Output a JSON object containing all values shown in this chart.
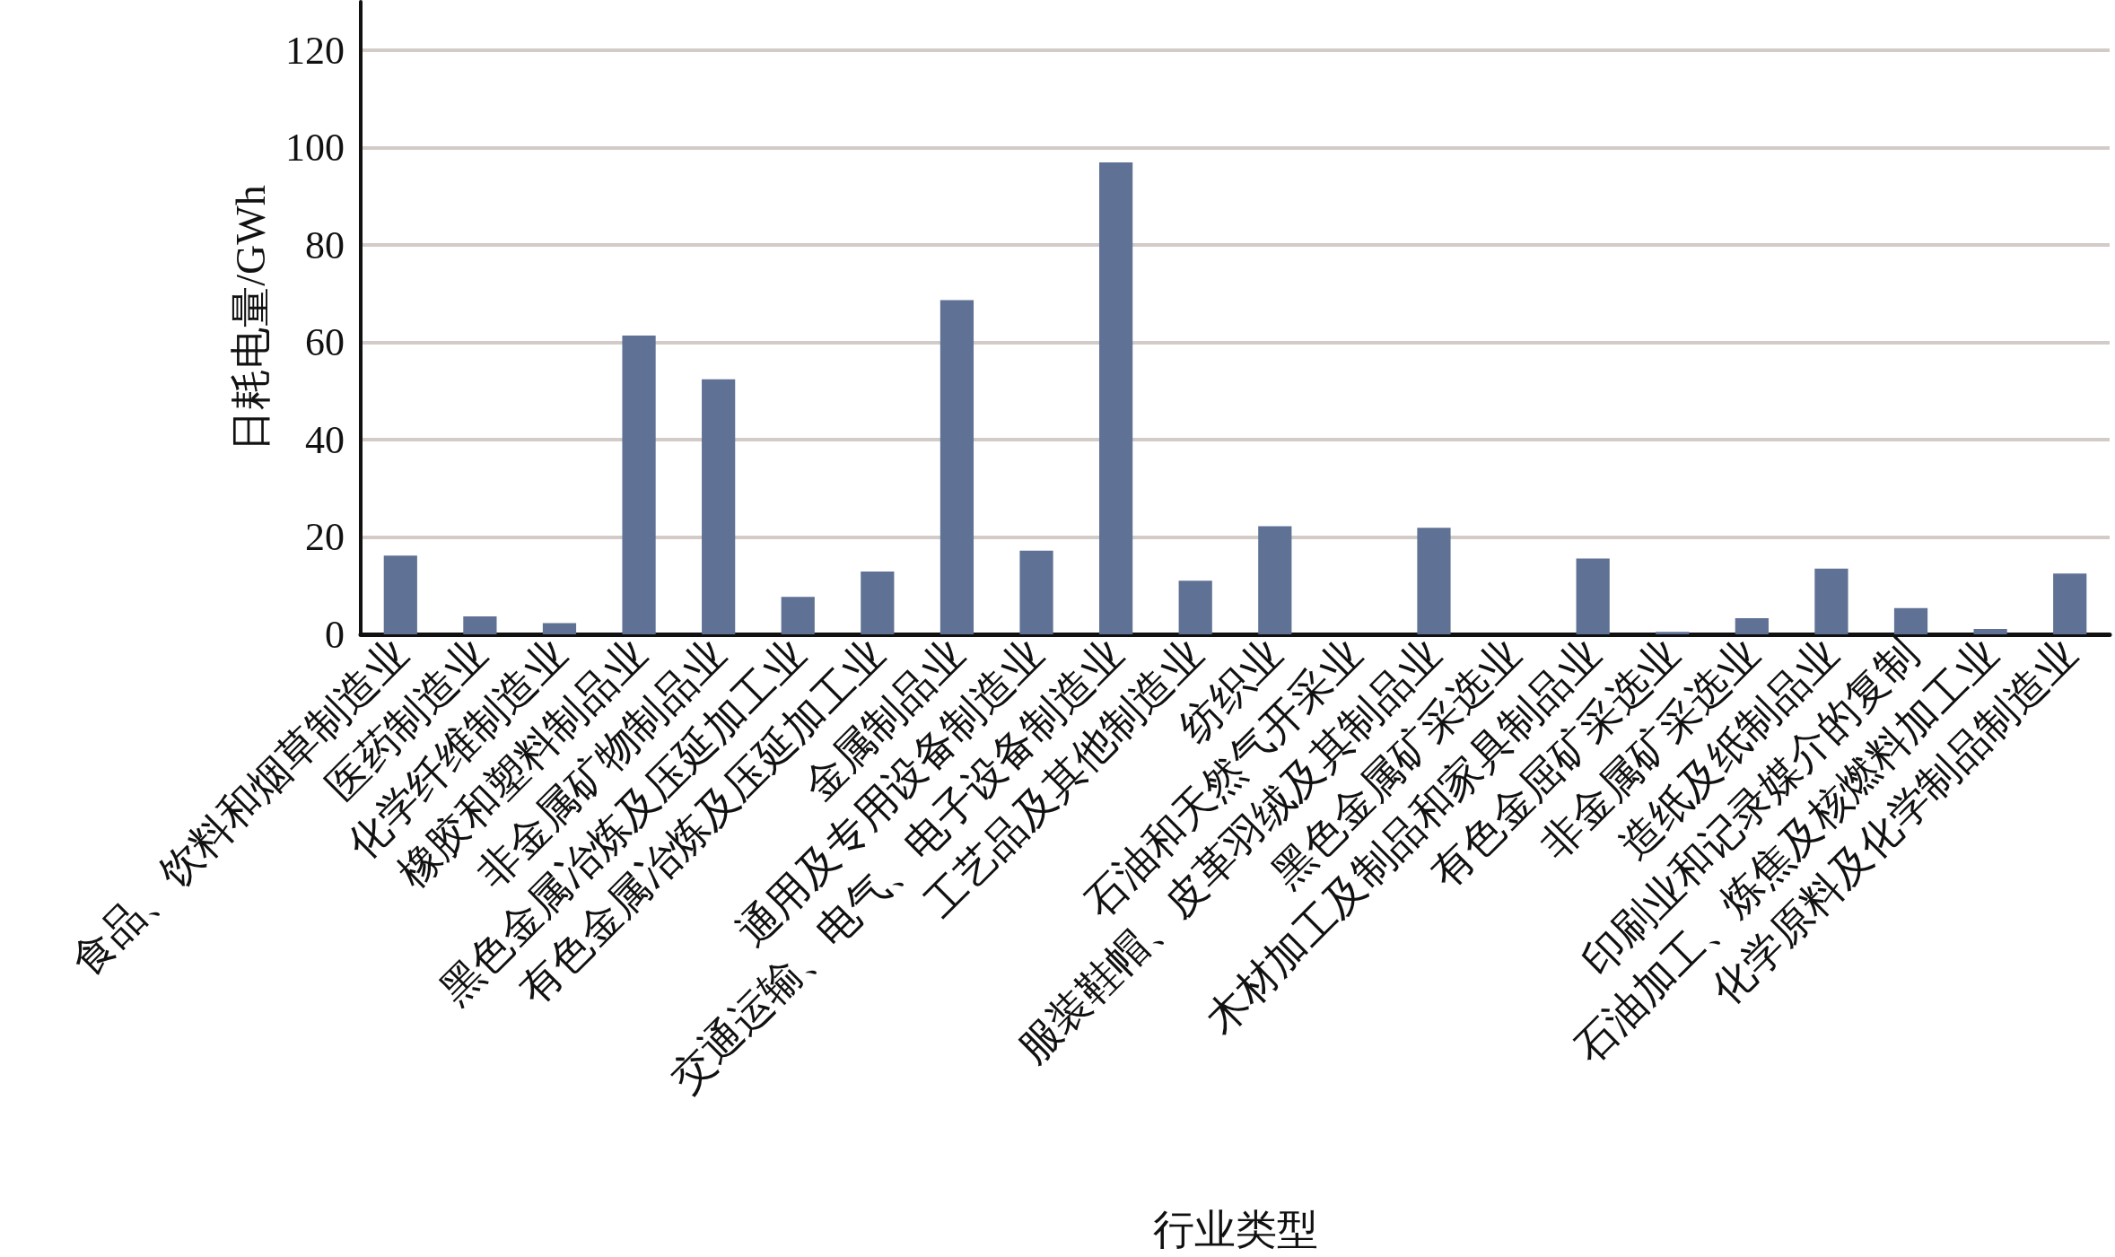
{
  "chart_data": {
    "type": "bar",
    "xlabel": "行业类型",
    "ylabel": "日耗电量/GWh",
    "categories": [
      "食品、饮料和烟草制造业",
      "医药制造业",
      "化学纤维制造业",
      "橡胶和塑料制品业",
      "非金属矿物制品业",
      "黑色金属冶炼及压延加工业",
      "有色金属冶炼及压延加工业",
      "金属制品业",
      "通用及专用设备制造业",
      "交通运输、电气、电子设备制造业",
      "工艺品及其他制造业",
      "纺织业",
      "石油和天然气开采业",
      "服装鞋帽、皮革羽绒及其制品业",
      "黑色金属矿采选业",
      "木材加工及制品和家具制品业",
      "有色金屈矿采选业",
      "非金属矿采选业",
      "造纸及纸制品业",
      "印刷业和记录媒介的复制",
      "石油加工、炼焦及核燃料加工业",
      "化学原料及化学制品制造业"
    ],
    "values": [
      16.2,
      3.7,
      2.3,
      61.4,
      52.4,
      7.7,
      12.9,
      68.7,
      17.2,
      97,
      11,
      22.2,
      0,
      21.9,
      0,
      15.6,
      0.5,
      3.3,
      13.5,
      5.4,
      1.1,
      12.5
    ],
    "color": "#5f7194",
    "ylim": [
      0,
      130
    ],
    "yticks": [
      0,
      20,
      40,
      60,
      80,
      100,
      120
    ],
    "grid": "y"
  }
}
